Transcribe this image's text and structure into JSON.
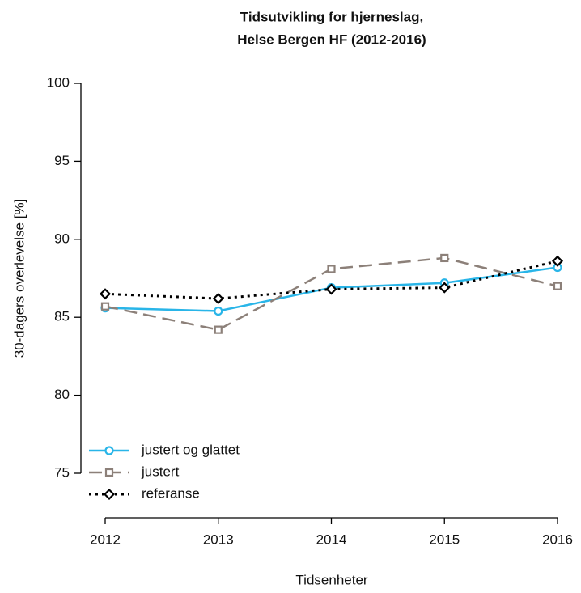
{
  "chart_data": {
    "type": "line",
    "title": [
      "Tidsutvikling for hjerneslag,",
      "Helse Bergen HF (2012-2016)"
    ],
    "xlabel": "Tidsenheter",
    "ylabel": "30-dagers overlevelse [%]",
    "x": [
      2012,
      2013,
      2014,
      2015,
      2016
    ],
    "xlim": [
      2012,
      2016
    ],
    "xticks": [
      2012,
      2013,
      2014,
      2015,
      2016
    ],
    "ylim": [
      75,
      100
    ],
    "yticks": [
      75,
      80,
      85,
      90,
      95,
      100
    ],
    "legend": "bottom-left",
    "series": [
      {
        "name": "justert og glattet",
        "color": "#29b5e8",
        "linestyle": "solid",
        "marker": "circle",
        "values": [
          85.6,
          85.4,
          86.9,
          87.2,
          88.2
        ]
      },
      {
        "name": "justert",
        "color": "#8c8079",
        "linestyle": "dashed",
        "marker": "square",
        "values": [
          85.7,
          84.2,
          88.1,
          88.8,
          87.0
        ]
      },
      {
        "name": "referanse",
        "color": "#000000",
        "linestyle": "dotted",
        "marker": "diamond",
        "values": [
          86.5,
          86.2,
          86.8,
          86.9,
          88.6
        ]
      }
    ]
  }
}
